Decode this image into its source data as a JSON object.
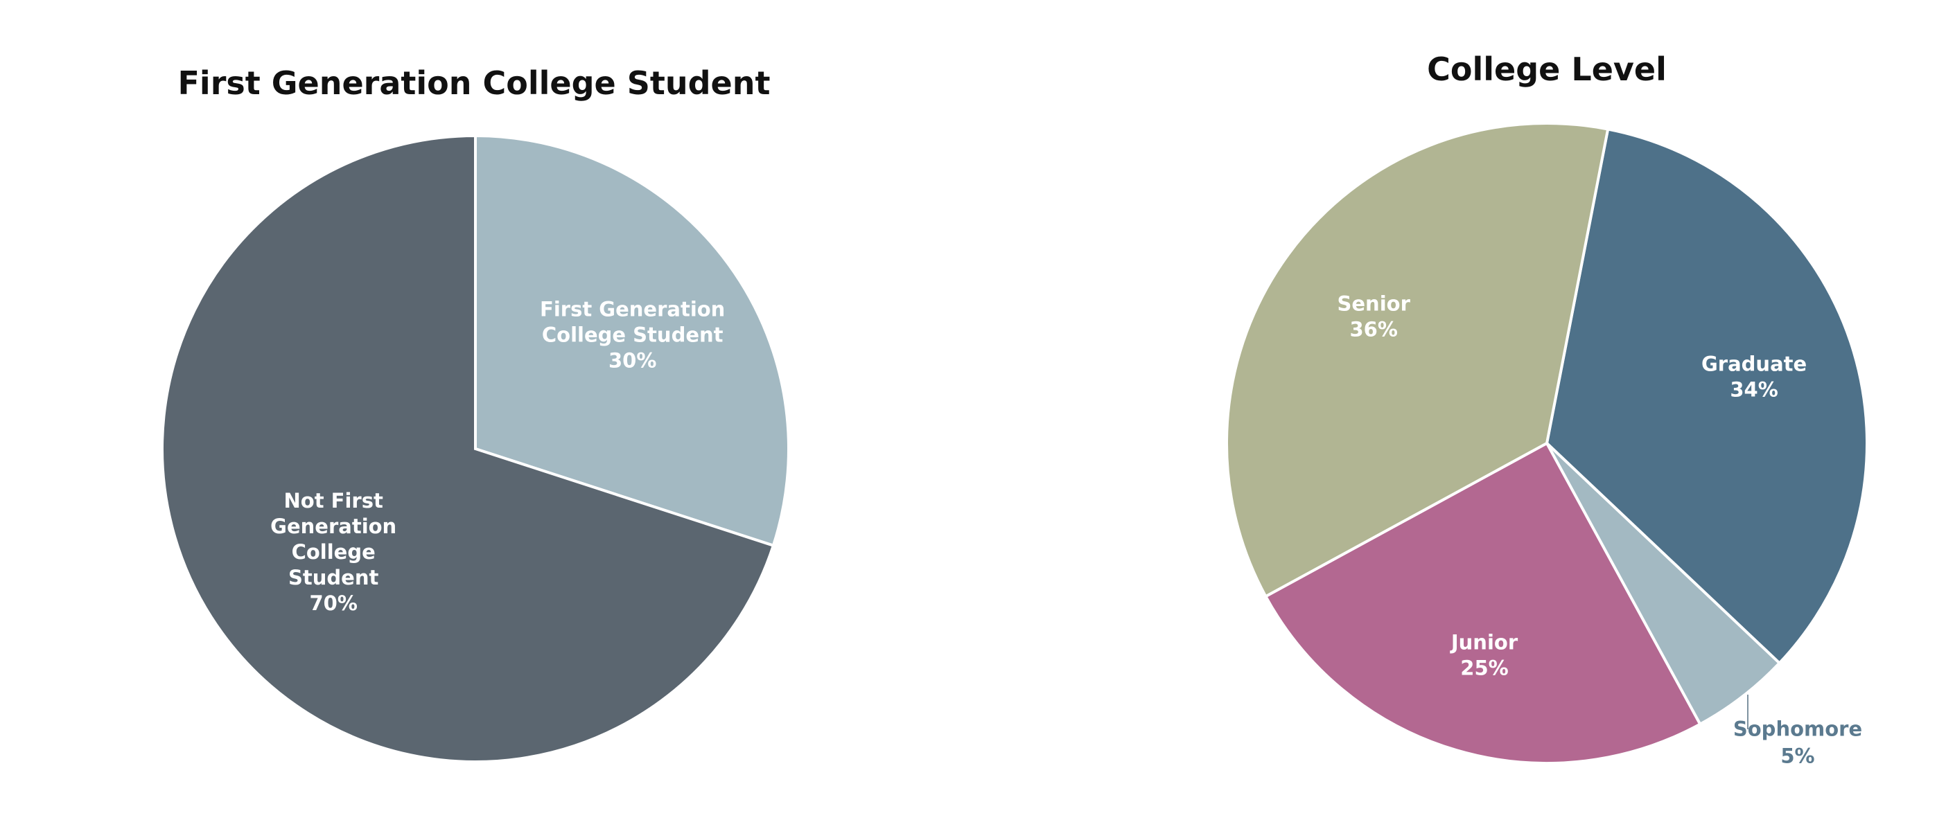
{
  "chart_data": [
    {
      "type": "pie",
      "title": "First Generation College Student",
      "slices": [
        {
          "label_lines": [
            "First Generation",
            "College Student"
          ],
          "value_text": "30%",
          "value": 30,
          "color": "#a3b9c2"
        },
        {
          "label_lines": [
            "Not First",
            "Generation",
            "College",
            "Student"
          ],
          "value_text": "70%",
          "value": 70,
          "color": "#5b6670"
        }
      ]
    },
    {
      "type": "pie",
      "title": "College Level",
      "slices": [
        {
          "label_lines": [
            "Graduate"
          ],
          "value_text": "34%",
          "value": 34,
          "color": "#4e7189"
        },
        {
          "label_lines": [
            "Sophomore"
          ],
          "value_text": "5%",
          "value": 5,
          "color": "#a3b9c2",
          "label_color": "#5b7a8f"
        },
        {
          "label_lines": [
            "Junior"
          ],
          "value_text": "25%",
          "value": 25,
          "color": "#b36891"
        },
        {
          "label_lines": [
            "Senior"
          ],
          "value_text": "36%",
          "value": 36,
          "color": "#b1b593"
        }
      ]
    }
  ]
}
